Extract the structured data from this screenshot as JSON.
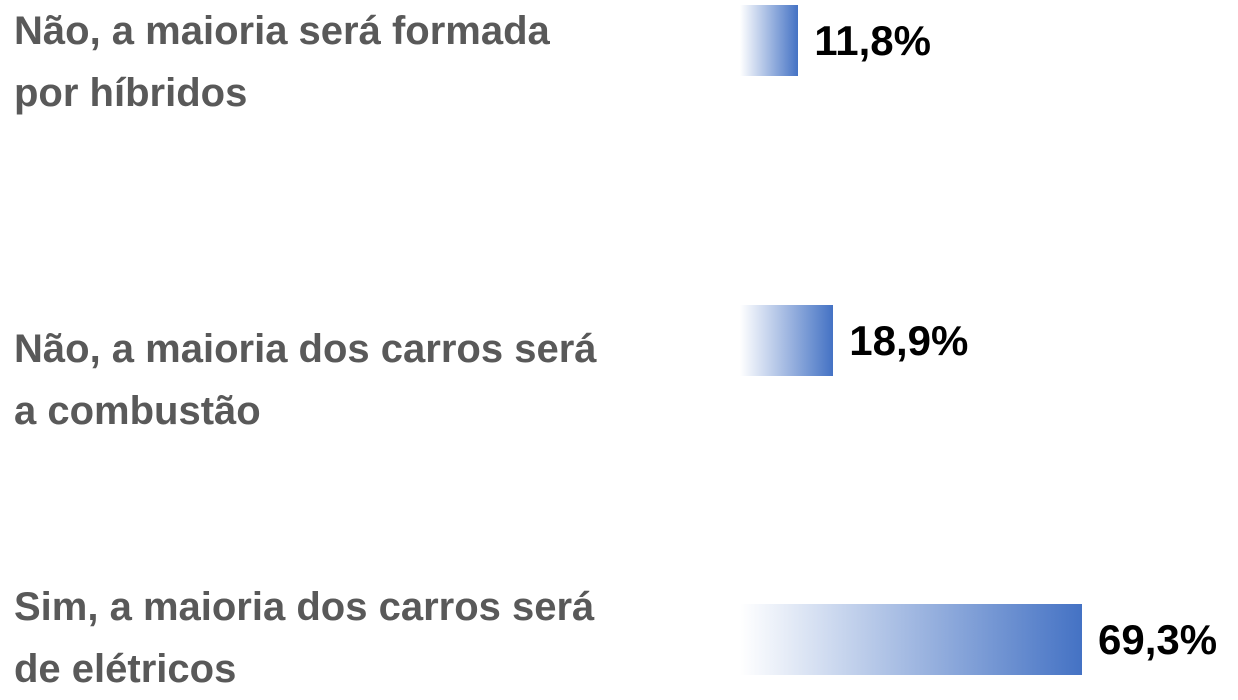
{
  "chart_data": {
    "type": "bar",
    "orientation": "horizontal",
    "categories": [
      "Não, a maioria será formada\npor híbridos",
      "Não, a maioria dos carros será\na combustão",
      "Sim, a maioria dos carros será\nde elétricos"
    ],
    "values": [
      11.8,
      18.9,
      69.3
    ],
    "value_labels": [
      "11,8%",
      "18,9%",
      "69,3%"
    ],
    "color": "#4472c4"
  }
}
